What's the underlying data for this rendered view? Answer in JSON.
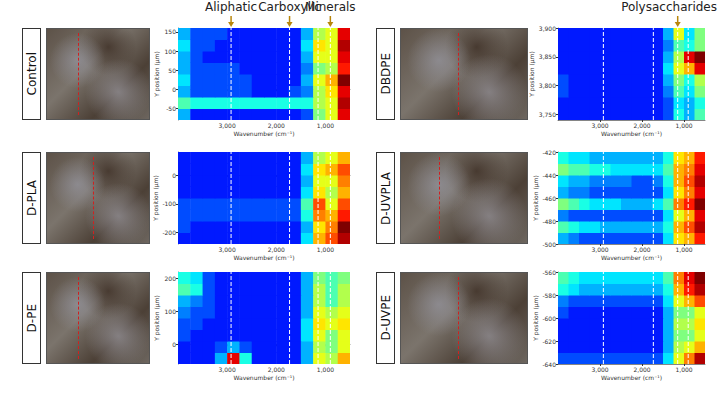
{
  "chart_data": {
    "type": "heatmap",
    "xlabel": "Wavenumber (cm⁻¹)",
    "ylabel": "Y position (µm)",
    "xlim": [
      4000,
      500
    ],
    "xticks": [
      3000,
      2000,
      1000
    ],
    "zlim": [
      0,
      1
    ],
    "x": [
      3875,
      3625,
      3375,
      3125,
      2875,
      2625,
      2375,
      2125,
      1875,
      1625,
      1375,
      1125,
      875,
      625
    ],
    "annotations": [
      {
        "text": "Aliphatic",
        "x": 2920,
        "panel": "Control"
      },
      {
        "text": "Carboxylic",
        "x": 1730,
        "panel": "Control"
      },
      {
        "text": "Minerals",
        "x": 900,
        "panel": "Control"
      },
      {
        "text": "Polysaccharides",
        "x": 1150,
        "panel": "DBDPE"
      }
    ],
    "panels": [
      {
        "name": "Control",
        "ylim": [
          -80,
          160
        ],
        "yticks": [
          -50,
          0,
          50,
          100,
          150
        ],
        "y": [
          -65,
          -35,
          -5,
          25,
          55,
          85,
          115,
          145
        ],
        "values": [
          [
            0.3,
            0.15,
            0.15,
            0.15,
            0.15,
            0.15,
            0.15,
            0.15,
            0.15,
            0.15,
            0.2,
            0.5,
            0.6,
            0.9
          ],
          [
            0.45,
            0.4,
            0.4,
            0.4,
            0.4,
            0.4,
            0.4,
            0.4,
            0.4,
            0.4,
            0.4,
            0.55,
            0.6,
            0.95
          ],
          [
            0.3,
            0.2,
            0.2,
            0.2,
            0.2,
            0.2,
            0.15,
            0.15,
            0.15,
            0.2,
            0.25,
            0.55,
            0.65,
            0.9
          ],
          [
            0.35,
            0.2,
            0.2,
            0.2,
            0.2,
            0.2,
            0.15,
            0.15,
            0.15,
            0.15,
            0.3,
            0.6,
            0.7,
            1.0
          ],
          [
            0.3,
            0.2,
            0.2,
            0.2,
            0.2,
            0.15,
            0.15,
            0.15,
            0.15,
            0.15,
            0.25,
            0.5,
            0.55,
            0.85
          ],
          [
            0.3,
            0.2,
            0.15,
            0.15,
            0.15,
            0.15,
            0.15,
            0.15,
            0.15,
            0.15,
            0.3,
            0.6,
            0.6,
            0.9
          ],
          [
            0.35,
            0.2,
            0.2,
            0.15,
            0.15,
            0.15,
            0.15,
            0.15,
            0.15,
            0.15,
            0.35,
            0.65,
            0.6,
            0.95
          ],
          [
            0.3,
            0.2,
            0.2,
            0.2,
            0.15,
            0.15,
            0.15,
            0.15,
            0.15,
            0.15,
            0.3,
            0.55,
            0.6,
            0.9
          ]
        ]
      },
      {
        "name": "D-PLA",
        "ylim": [
          -240,
          80
        ],
        "yticks": [
          -200,
          -100,
          0
        ],
        "y": [
          -220,
          -180,
          -140,
          -100,
          -60,
          -20,
          20,
          60
        ],
        "values": [
          [
            0.15,
            0.15,
            0.15,
            0.15,
            0.15,
            0.15,
            0.15,
            0.15,
            0.15,
            0.15,
            0.35,
            0.7,
            0.8,
            0.95
          ],
          [
            0.2,
            0.15,
            0.15,
            0.15,
            0.15,
            0.15,
            0.15,
            0.15,
            0.15,
            0.15,
            0.3,
            0.65,
            0.75,
            1.0
          ],
          [
            0.2,
            0.2,
            0.2,
            0.2,
            0.2,
            0.2,
            0.2,
            0.2,
            0.2,
            0.2,
            0.4,
            0.75,
            0.7,
            0.85
          ],
          [
            0.2,
            0.2,
            0.2,
            0.2,
            0.2,
            0.2,
            0.2,
            0.2,
            0.2,
            0.2,
            0.45,
            0.8,
            0.6,
            0.8
          ],
          [
            0.15,
            0.15,
            0.15,
            0.15,
            0.15,
            0.15,
            0.15,
            0.15,
            0.15,
            0.15,
            0.35,
            0.65,
            0.55,
            0.7
          ],
          [
            0.15,
            0.15,
            0.15,
            0.15,
            0.15,
            0.15,
            0.15,
            0.15,
            0.15,
            0.15,
            0.3,
            0.6,
            0.6,
            0.75
          ],
          [
            0.15,
            0.15,
            0.15,
            0.15,
            0.15,
            0.15,
            0.15,
            0.15,
            0.15,
            0.15,
            0.35,
            0.65,
            0.7,
            0.8
          ],
          [
            0.15,
            0.15,
            0.15,
            0.15,
            0.15,
            0.15,
            0.15,
            0.15,
            0.15,
            0.15,
            0.3,
            0.55,
            0.6,
            0.7
          ]
        ]
      },
      {
        "name": "D-PE",
        "ylim": [
          -60,
          220
        ],
        "yticks": [
          0,
          100,
          200
        ],
        "y": [
          -42.5,
          -7.5,
          27.5,
          62.5,
          97.5,
          132.5,
          167.5,
          202.5
        ],
        "values": [
          [
            0.15,
            0.15,
            0.15,
            0.3,
            0.9,
            0.4,
            0.15,
            0.15,
            0.15,
            0.15,
            0.3,
            0.6,
            0.55,
            0.7
          ],
          [
            0.15,
            0.15,
            0.15,
            0.2,
            0.3,
            0.2,
            0.15,
            0.15,
            0.15,
            0.15,
            0.3,
            0.55,
            0.5,
            0.6
          ],
          [
            0.2,
            0.15,
            0.15,
            0.15,
            0.15,
            0.15,
            0.15,
            0.15,
            0.15,
            0.15,
            0.35,
            0.6,
            0.5,
            0.6
          ],
          [
            0.2,
            0.2,
            0.15,
            0.15,
            0.15,
            0.15,
            0.15,
            0.15,
            0.15,
            0.15,
            0.35,
            0.65,
            0.6,
            0.65
          ],
          [
            0.25,
            0.2,
            0.2,
            0.15,
            0.15,
            0.15,
            0.15,
            0.15,
            0.15,
            0.15,
            0.3,
            0.6,
            0.55,
            0.6
          ],
          [
            0.3,
            0.25,
            0.2,
            0.15,
            0.15,
            0.15,
            0.15,
            0.15,
            0.15,
            0.15,
            0.3,
            0.55,
            0.45,
            0.55
          ],
          [
            0.45,
            0.4,
            0.2,
            0.15,
            0.15,
            0.15,
            0.15,
            0.15,
            0.15,
            0.15,
            0.3,
            0.55,
            0.45,
            0.55
          ],
          [
            0.4,
            0.35,
            0.2,
            0.15,
            0.15,
            0.15,
            0.15,
            0.15,
            0.15,
            0.15,
            0.3,
            0.5,
            0.45,
            0.5
          ]
        ]
      },
      {
        "name": "DBDPE",
        "ylim": [
          3740,
          3900
        ],
        "yticks": [
          3750,
          3800,
          3850,
          3900
        ],
        "y": [
          3750,
          3770,
          3790,
          3810,
          3830,
          3850,
          3870,
          3890
        ],
        "values": [
          [
            0.15,
            0.15,
            0.15,
            0.15,
            0.15,
            0.15,
            0.15,
            0.15,
            0.15,
            0.15,
            0.2,
            0.4,
            0.3,
            0.45
          ],
          [
            0.15,
            0.15,
            0.15,
            0.15,
            0.15,
            0.15,
            0.15,
            0.15,
            0.15,
            0.15,
            0.2,
            0.35,
            0.3,
            0.4
          ],
          [
            0.2,
            0.15,
            0.15,
            0.15,
            0.15,
            0.15,
            0.15,
            0.15,
            0.15,
            0.15,
            0.25,
            0.45,
            0.35,
            0.5
          ],
          [
            0.2,
            0.15,
            0.15,
            0.15,
            0.15,
            0.15,
            0.15,
            0.15,
            0.15,
            0.15,
            0.3,
            0.5,
            0.4,
            0.55
          ],
          [
            0.15,
            0.15,
            0.15,
            0.15,
            0.15,
            0.15,
            0.15,
            0.15,
            0.15,
            0.15,
            0.35,
            0.6,
            0.7,
            0.9
          ],
          [
            0.15,
            0.15,
            0.15,
            0.15,
            0.15,
            0.15,
            0.15,
            0.15,
            0.15,
            0.15,
            0.3,
            0.55,
            0.9,
            1.0
          ],
          [
            0.15,
            0.15,
            0.15,
            0.15,
            0.15,
            0.15,
            0.15,
            0.15,
            0.15,
            0.15,
            0.25,
            0.45,
            0.4,
            0.5
          ],
          [
            0.15,
            0.15,
            0.15,
            0.15,
            0.15,
            0.15,
            0.15,
            0.15,
            0.15,
            0.15,
            0.3,
            0.6,
            0.35,
            0.5
          ]
        ]
      },
      {
        "name": "D-UVPLA",
        "ylim": [
          -500,
          -420
        ],
        "yticks": [
          -500,
          -480,
          -460,
          -440,
          -420
        ],
        "y": [
          -495,
          -485,
          -475,
          -465,
          -455,
          -445,
          -435,
          -425
        ],
        "values": [
          [
            0.3,
            0.25,
            0.2,
            0.2,
            0.2,
            0.2,
            0.2,
            0.2,
            0.2,
            0.2,
            0.35,
            0.65,
            0.7,
            0.85
          ],
          [
            0.45,
            0.4,
            0.35,
            0.35,
            0.3,
            0.3,
            0.3,
            0.3,
            0.3,
            0.3,
            0.4,
            0.7,
            0.8,
            0.95
          ],
          [
            0.25,
            0.2,
            0.2,
            0.2,
            0.2,
            0.2,
            0.2,
            0.2,
            0.2,
            0.2,
            0.35,
            0.6,
            0.7,
            0.9
          ],
          [
            0.5,
            0.45,
            0.4,
            0.35,
            0.35,
            0.35,
            0.3,
            0.3,
            0.3,
            0.35,
            0.45,
            0.75,
            0.85,
            1.0
          ],
          [
            0.3,
            0.25,
            0.25,
            0.2,
            0.2,
            0.2,
            0.2,
            0.2,
            0.2,
            0.2,
            0.35,
            0.65,
            0.75,
            0.9
          ],
          [
            0.35,
            0.3,
            0.3,
            0.25,
            0.25,
            0.25,
            0.25,
            0.2,
            0.2,
            0.25,
            0.4,
            0.7,
            0.8,
            0.95
          ],
          [
            0.5,
            0.45,
            0.45,
            0.4,
            0.4,
            0.35,
            0.35,
            0.35,
            0.35,
            0.35,
            0.45,
            0.7,
            0.75,
            0.9
          ],
          [
            0.4,
            0.35,
            0.35,
            0.3,
            0.3,
            0.3,
            0.3,
            0.3,
            0.3,
            0.3,
            0.4,
            0.65,
            0.7,
            0.85
          ]
        ]
      },
      {
        "name": "D-UVPE",
        "ylim": [
          -640,
          -560
        ],
        "yticks": [
          -640,
          -620,
          -600,
          -580,
          -560
        ],
        "y": [
          -635,
          -625,
          -615,
          -605,
          -595,
          -585,
          -575,
          -565
        ],
        "values": [
          [
            0.2,
            0.2,
            0.2,
            0.2,
            0.2,
            0.2,
            0.2,
            0.2,
            0.2,
            0.2,
            0.35,
            0.6,
            0.75,
            0.95
          ],
          [
            0.15,
            0.15,
            0.15,
            0.15,
            0.15,
            0.15,
            0.15,
            0.15,
            0.15,
            0.15,
            0.3,
            0.55,
            0.6,
            0.7
          ],
          [
            0.15,
            0.15,
            0.15,
            0.15,
            0.15,
            0.15,
            0.15,
            0.15,
            0.15,
            0.15,
            0.3,
            0.5,
            0.5,
            0.6
          ],
          [
            0.15,
            0.15,
            0.15,
            0.15,
            0.15,
            0.15,
            0.15,
            0.15,
            0.15,
            0.15,
            0.3,
            0.55,
            0.55,
            0.65
          ],
          [
            0.2,
            0.15,
            0.15,
            0.15,
            0.15,
            0.15,
            0.15,
            0.15,
            0.15,
            0.15,
            0.3,
            0.5,
            0.5,
            0.6
          ],
          [
            0.25,
            0.2,
            0.2,
            0.2,
            0.2,
            0.2,
            0.2,
            0.2,
            0.2,
            0.2,
            0.35,
            0.6,
            0.7,
            0.8
          ],
          [
            0.4,
            0.35,
            0.3,
            0.3,
            0.3,
            0.3,
            0.3,
            0.3,
            0.3,
            0.3,
            0.4,
            0.7,
            0.85,
            0.95
          ],
          [
            0.45,
            0.4,
            0.35,
            0.35,
            0.35,
            0.35,
            0.35,
            0.35,
            0.35,
            0.35,
            0.45,
            0.75,
            0.9,
            1.0
          ]
        ]
      }
    ]
  }
}
